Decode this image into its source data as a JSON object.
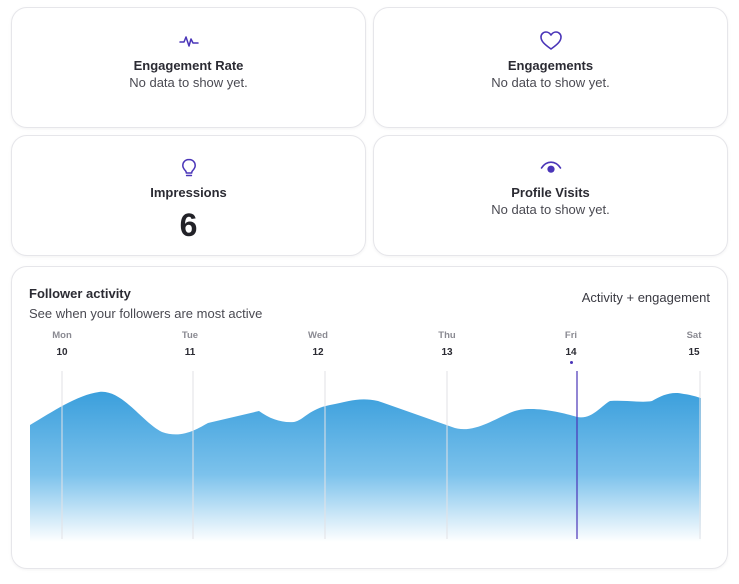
{
  "stats": {
    "engagement_rate": {
      "title": "Engagement Rate",
      "value": "No data to show yet.",
      "icon": "pulse-icon"
    },
    "engagements": {
      "title": "Engagements",
      "value": "No data to show yet.",
      "icon": "heart-icon"
    },
    "impressions": {
      "title": "Impressions",
      "value": "6",
      "icon": "lightbulb-icon"
    },
    "profile_visits": {
      "title": "Profile Visits",
      "value": "No data to show yet.",
      "icon": "eye-icon"
    }
  },
  "activity": {
    "title": "Follower activity",
    "subtitle": "See when your followers are most active",
    "filter_label": "Activity + engagement",
    "days": [
      {
        "dow": "Mon",
        "date": "10",
        "today": false
      },
      {
        "dow": "Tue",
        "date": "11",
        "today": false
      },
      {
        "dow": "Wed",
        "date": "12",
        "today": false
      },
      {
        "dow": "Thu",
        "date": "13",
        "today": false
      },
      {
        "dow": "Fri",
        "date": "14",
        "today": true
      },
      {
        "dow": "Sat",
        "date": "15",
        "today": false
      }
    ],
    "colors": {
      "accent": "#4a35b8",
      "area_top": "#3b9fdc",
      "area_bottom": "#ffffff",
      "grid": "#e2e2e6"
    }
  }
}
